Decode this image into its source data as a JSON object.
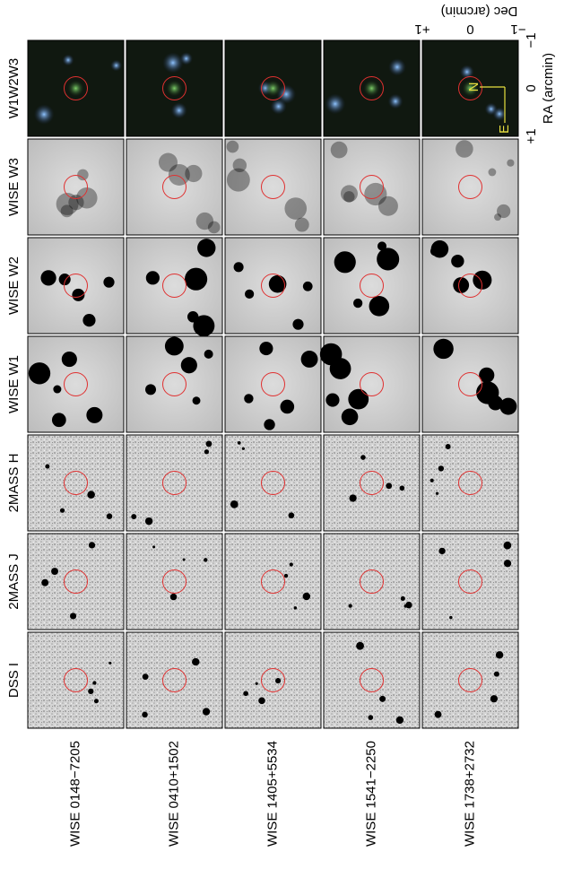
{
  "columns": [
    "DSS I",
    "2MASS J",
    "2MASS H",
    "WISE W1",
    "WISE W2",
    "WISE W3",
    "W1W2W3"
  ],
  "rows": [
    "WISE 0148−7205",
    "WISE 0410+1502",
    "WISE 1405+5534",
    "WISE 1541−2250",
    "WISE 1738+2732"
  ],
  "axes": {
    "ra_label": "RA (arcmin)",
    "ra_ticks": [
      "+1",
      "0",
      "−1"
    ],
    "dec_label": "Dec (arcmin)",
    "dec_ticks": [
      "+1",
      "0",
      "−1"
    ]
  },
  "compass": {
    "north": "N",
    "east": "E"
  }
}
